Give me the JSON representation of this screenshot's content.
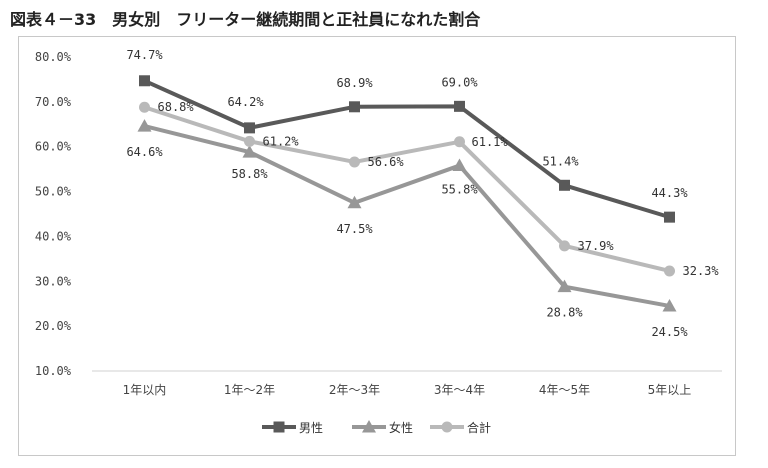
{
  "figure_title": "図表４－33　男女別　フリーター継続期間と正社員になれた割合",
  "chart_data": {
    "type": "line",
    "categories": [
      "1年以内",
      "1年～2年",
      "2年～3年",
      "3年～4年",
      "4年～5年",
      "5年以上"
    ],
    "ylim": [
      10,
      80
    ],
    "yticks": [
      10,
      20,
      30,
      40,
      50,
      60,
      70,
      80
    ],
    "ytick_labels": [
      "10.0%",
      "20.0%",
      "30.0%",
      "40.0%",
      "50.0%",
      "60.0%",
      "70.0%",
      "80.0%"
    ],
    "grid": false,
    "legend_position": "bottom",
    "series": [
      {
        "name": "男性",
        "marker": "square",
        "color": "#595959",
        "values": [
          74.7,
          64.2,
          68.9,
          69.0,
          51.4,
          44.3
        ],
        "labels": [
          "74.7%",
          "64.2%",
          "68.9%",
          "69.0%",
          "51.4%",
          "44.3%"
        ]
      },
      {
        "name": "女性",
        "marker": "triangle",
        "color": "#979797",
        "values": [
          64.6,
          58.8,
          47.5,
          55.8,
          28.8,
          24.5
        ],
        "labels": [
          "64.6%",
          "58.8%",
          "47.5%",
          "55.8%",
          "28.8%",
          "24.5%"
        ]
      },
      {
        "name": "合計",
        "marker": "circle",
        "color": "#b9b9b9",
        "values": [
          68.8,
          61.2,
          56.6,
          61.1,
          37.9,
          32.3
        ],
        "labels": [
          "68.8%",
          "61.2%",
          "56.6%",
          "61.1%",
          "37.9%",
          "32.3%"
        ]
      }
    ]
  }
}
